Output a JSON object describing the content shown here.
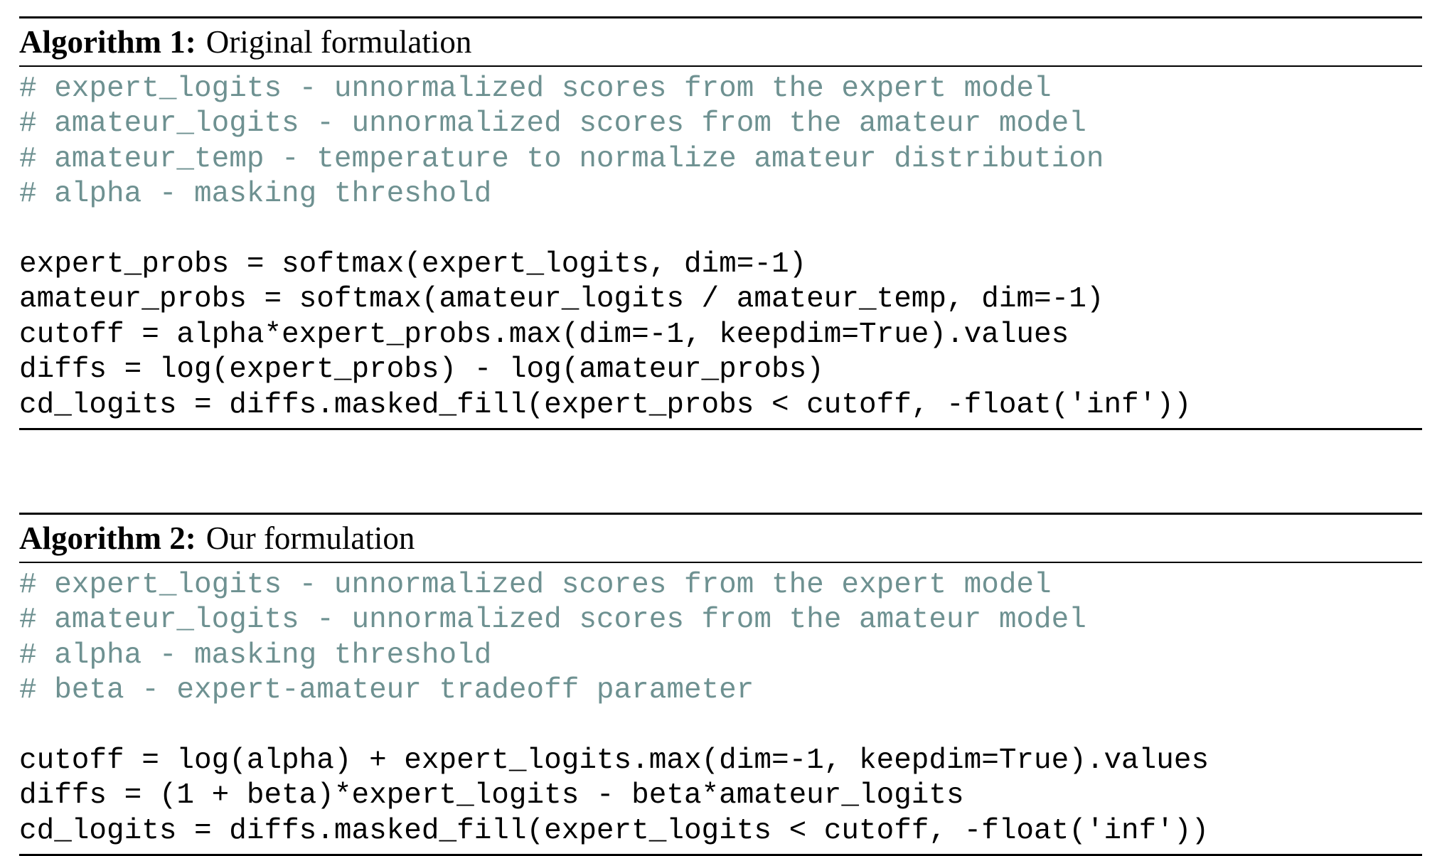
{
  "algorithms": [
    {
      "label": "Algorithm 1:",
      "title": "Original formulation",
      "comments": [
        "# expert_logits - unnormalized scores from the expert model",
        "# amateur_logits - unnormalized scores from the amateur model",
        "# amateur_temp - temperature to normalize amateur distribution",
        "# alpha - masking threshold"
      ],
      "code": [
        "expert_probs = softmax(expert_logits, dim=-1)",
        "amateur_probs = softmax(amateur_logits / amateur_temp, dim=-1)",
        "cutoff = alpha*expert_probs.max(dim=-1, keepdim=True).values",
        "diffs = log(expert_probs) - log(amateur_probs)",
        "cd_logits = diffs.masked_fill(expert_probs < cutoff, -float('inf'))"
      ]
    },
    {
      "label": "Algorithm 2:",
      "title": "Our formulation",
      "comments": [
        "# expert_logits - unnormalized scores from the expert model",
        "# amateur_logits - unnormalized scores from the amateur model",
        "# alpha - masking threshold",
        "# beta - expert-amateur tradeoff parameter"
      ],
      "code": [
        "cutoff = log(alpha) + expert_logits.max(dim=-1, keepdim=True).values",
        "diffs = (1 + beta)*expert_logits - beta*amateur_logits",
        "cd_logits = diffs.masked_fill(expert_logits < cutoff, -float('inf'))"
      ]
    }
  ],
  "colors": {
    "comment": "#6e9191",
    "code": "#000000",
    "rule": "#000000"
  }
}
